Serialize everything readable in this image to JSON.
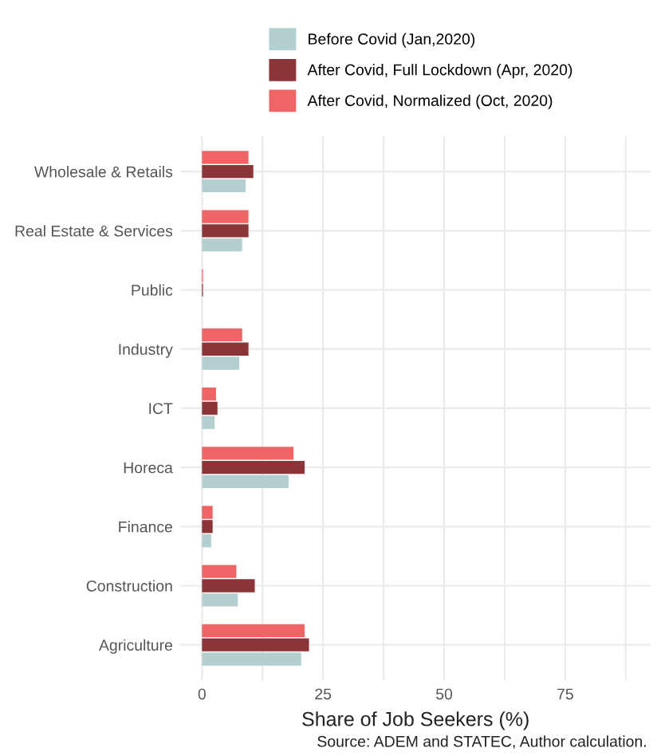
{
  "chart_data": {
    "type": "bar",
    "orientation": "horizontal",
    "xlabel": "Share of Job Seekers (%)",
    "categories": [
      "Wholesale & Retails",
      "Real Estate & Services",
      "Public",
      "Industry",
      "ICT",
      "Horeca",
      "Finance",
      "Construction",
      "Agriculture"
    ],
    "series": [
      {
        "name": "Before Covid (Jan,2020)",
        "color": "#b3cfcf",
        "values": [
          9.0,
          8.3,
          null,
          7.7,
          2.6,
          17.9,
          1.9,
          7.4,
          20.5
        ]
      },
      {
        "name": "After Covid, Full Lockdown (Apr, 2020)",
        "color": "#8b3538",
        "values": [
          10.6,
          9.6,
          0.2,
          9.6,
          3.2,
          21.2,
          2.2,
          10.9,
          22.1
        ]
      },
      {
        "name": "After Covid, Normalized (Oct, 2020)",
        "color": "#ef6464",
        "values": [
          9.6,
          9.6,
          0.2,
          8.3,
          2.9,
          18.9,
          2.2,
          7.1,
          21.2
        ]
      }
    ],
    "xlim": [
      -4.4,
      92.6
    ],
    "xticks": [
      0,
      {
        "value": 12.5,
        "label": null
      },
      25,
      {
        "value": 37.5,
        "label": null
      },
      50,
      {
        "value": 62.5,
        "label": null
      },
      75,
      {
        "value": 87.5,
        "label": null
      }
    ],
    "grid": true,
    "legend": "top",
    "annotations": [
      "Source: ADEM and STATEC, Author calculation."
    ]
  }
}
